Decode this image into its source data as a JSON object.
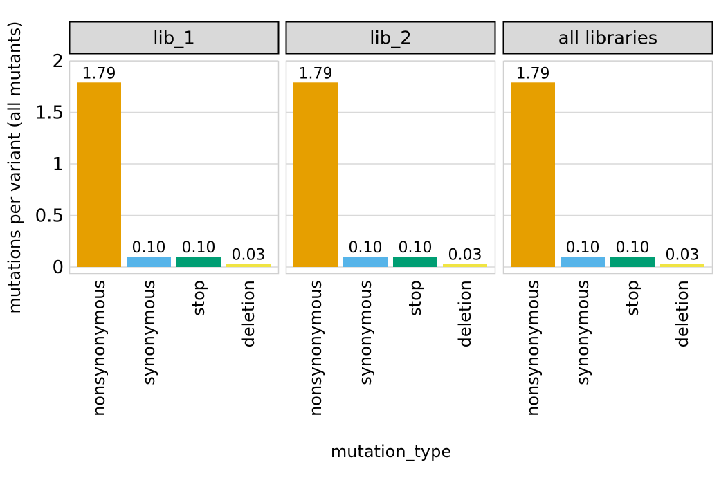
{
  "chart_data": {
    "type": "bar",
    "title": "",
    "xlabel": "mutation_type",
    "ylabel": "mutations per variant (all mutants)",
    "ylim": [
      0,
      2
    ],
    "y_ticks": [
      {
        "value": 0,
        "label": "0"
      },
      {
        "value": 0.5,
        "label": "0.5"
      },
      {
        "value": 1,
        "label": "1"
      },
      {
        "value": 1.5,
        "label": "1.5"
      },
      {
        "value": 2,
        "label": "2"
      }
    ],
    "categories": [
      "nonsynonymous",
      "synonymous",
      "stop",
      "deletion"
    ],
    "category_colors": [
      "#E69F00",
      "#56B4E9",
      "#009E73",
      "#F0E442"
    ],
    "grid": true,
    "legend": "none",
    "facets": [
      {
        "name": "lib_1",
        "values": [
          1.79,
          0.1,
          0.1,
          0.03
        ],
        "labels": [
          "1.79",
          "0.10",
          "0.10",
          "0.03"
        ]
      },
      {
        "name": "lib_2",
        "values": [
          1.79,
          0.1,
          0.1,
          0.03
        ],
        "labels": [
          "1.79",
          "0.10",
          "0.10",
          "0.03"
        ]
      },
      {
        "name": "all libraries",
        "values": [
          1.79,
          0.1,
          0.1,
          0.03
        ],
        "labels": [
          "1.79",
          "0.10",
          "0.10",
          "0.03"
        ]
      }
    ]
  }
}
